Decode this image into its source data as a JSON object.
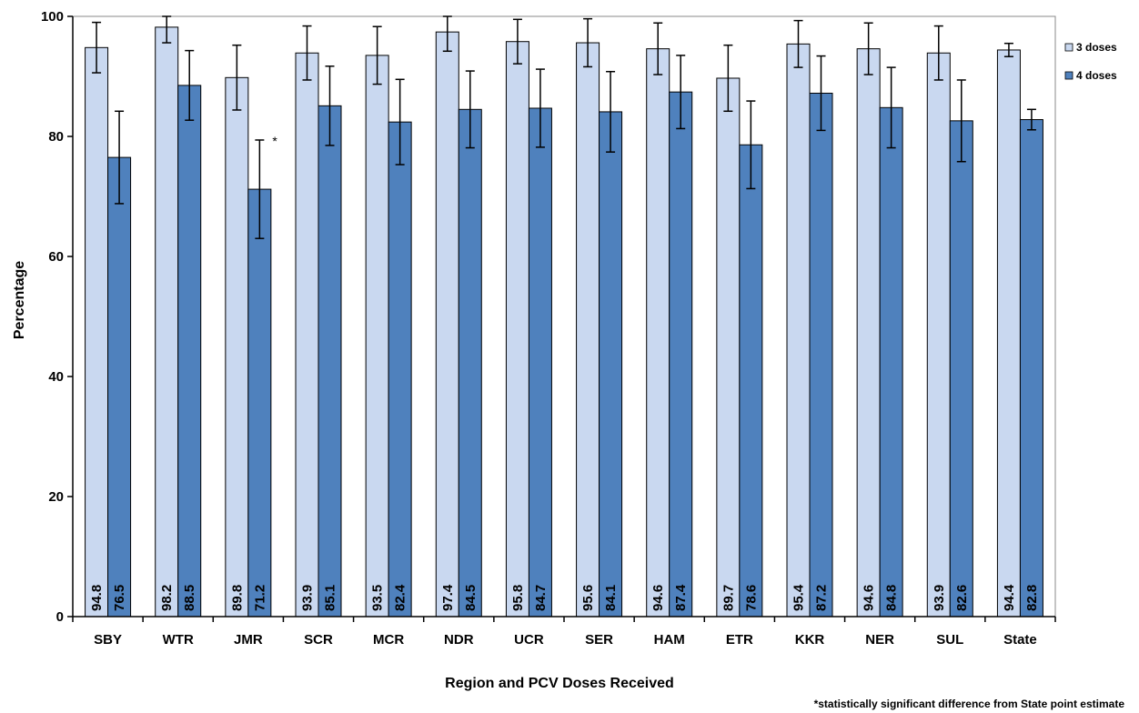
{
  "chart_data": {
    "type": "bar",
    "title": "",
    "xlabel": "Region and PCV Doses Received",
    "ylabel": "Percentage",
    "ylim": [
      0,
      100
    ],
    "yticks": [
      "0",
      "20",
      "40",
      "60",
      "80",
      "100"
    ],
    "grid": false,
    "legend_position": "top-right",
    "categories": [
      "SBY",
      "WTR",
      "JMR",
      "SCR",
      "MCR",
      "NDR",
      "UCR",
      "SER",
      "HAM",
      "ETR",
      "KKR",
      "NER",
      "SUL",
      "State"
    ],
    "series": [
      {
        "name": "3 doses",
        "color": "#c9d8f0",
        "values": [
          94.8,
          98.2,
          89.8,
          93.9,
          93.5,
          97.4,
          95.8,
          95.6,
          94.6,
          89.7,
          95.4,
          94.6,
          93.9,
          94.4
        ],
        "value_labels": [
          "94.8",
          "98.2",
          "89.8",
          "93.9",
          "93.5",
          "97.4",
          "95.8",
          "95.6",
          "94.6",
          "89.7",
          "95.4",
          "94.6",
          "93.9",
          "94.4"
        ],
        "error_low": [
          90.6,
          95.6,
          84.4,
          89.4,
          88.7,
          94.2,
          92.1,
          91.6,
          90.3,
          84.2,
          91.5,
          90.3,
          89.4,
          93.3
        ],
        "error_high": [
          99.0,
          100.0,
          95.2,
          98.4,
          98.3,
          100.0,
          99.5,
          99.6,
          98.9,
          95.2,
          99.3,
          98.9,
          98.4,
          95.5
        ]
      },
      {
        "name": "4 doses",
        "color": "#4f81bd",
        "values": [
          76.5,
          88.5,
          71.2,
          85.1,
          82.4,
          84.5,
          84.7,
          84.1,
          87.4,
          78.6,
          87.2,
          84.8,
          82.6,
          82.8
        ],
        "value_labels": [
          "76.5",
          "88.5",
          "71.2",
          "85.1",
          "82.4",
          "84.5",
          "84.7",
          "84.1",
          "87.4",
          "78.6",
          "87.2",
          "84.8",
          "82.6",
          "82.8"
        ],
        "error_low": [
          68.8,
          82.7,
          63.0,
          78.5,
          75.3,
          78.1,
          78.2,
          77.4,
          81.3,
          71.3,
          81.0,
          78.1,
          75.8,
          81.1
        ],
        "error_high": [
          84.2,
          94.3,
          79.4,
          91.7,
          89.5,
          90.9,
          91.2,
          90.8,
          93.5,
          85.9,
          93.4,
          91.5,
          89.4,
          84.5
        ]
      }
    ],
    "annotations": [
      {
        "category": "JMR",
        "series": "4 doses",
        "text": "*"
      }
    ],
    "footnote": "*statistically significant difference from State point estimate"
  }
}
